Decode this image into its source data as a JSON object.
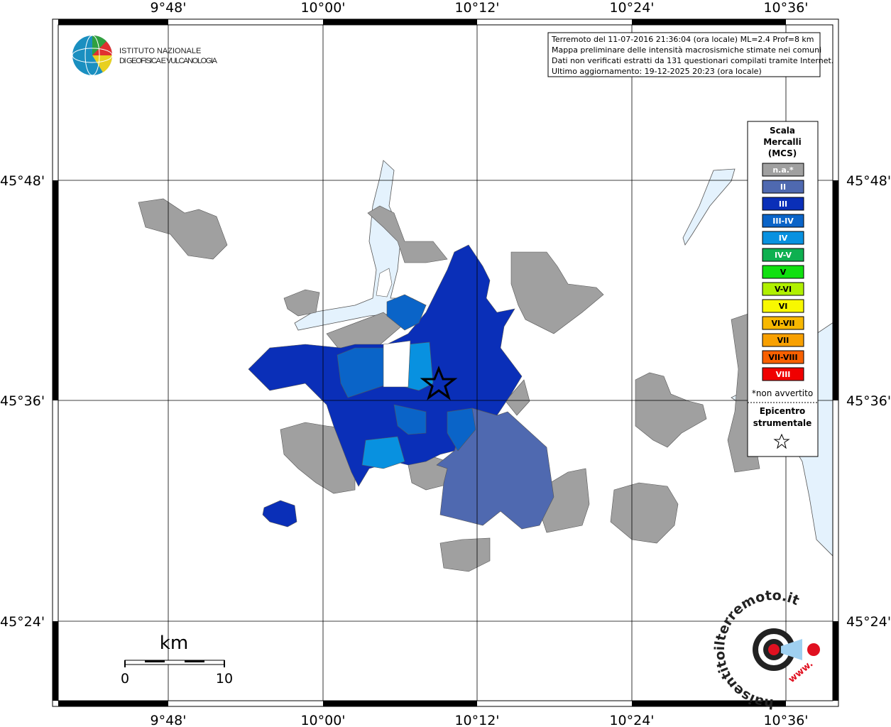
{
  "header": {
    "logo_line1": "ISTITUTO NAZIONALE",
    "logo_line2": "DI GEOFISICA E VULCANOLOGIA"
  },
  "info": [
    "Terremoto del 11-07-2016 21:36:04 (ora locale) ML=2.4 Prof=8 km",
    "Mappa preliminare delle intensità macrosismiche stimate nei comuni",
    "Dati non verificati estratti da 131 questionari compilati tramite Internet.",
    "Ultimo aggiornamento: 19-12-2025 20:23 (ora locale)"
  ],
  "lon_labels": [
    "9°48'",
    "10°00'",
    "10°12'",
    "10°24'",
    "10°36'"
  ],
  "lat_labels": [
    "45°48'",
    "45°36'",
    "45°24'"
  ],
  "legend": {
    "title": [
      "Scala",
      "Mercalli",
      "(MCS)"
    ],
    "items": [
      {
        "label": "n.a.*",
        "color": "#a0a0a0"
      },
      {
        "label": "II",
        "color": "#4f69b0"
      },
      {
        "label": "III",
        "color": "#0a2fb8"
      },
      {
        "label": "III-IV",
        "color": "#0a64c8"
      },
      {
        "label": "IV",
        "color": "#0891e0"
      },
      {
        "label": "IV-V",
        "color": "#0eb050"
      },
      {
        "label": "V",
        "color": "#10e010"
      },
      {
        "label": "V-VI",
        "color": "#b0f000"
      },
      {
        "label": "VI",
        "color": "#f8f800"
      },
      {
        "label": "VI-VII",
        "color": "#f8b800"
      },
      {
        "label": "VII",
        "color": "#f8a000"
      },
      {
        "label": "VII-VIII",
        "color": "#f86000"
      },
      {
        "label": "VIII",
        "color": "#f00000"
      }
    ],
    "note": "*non avvertito",
    "epicenter": [
      "Epicentro",
      "strumentale"
    ]
  },
  "scale_bar": {
    "unit": "km",
    "start": "0",
    "end": "10"
  },
  "site_logo": {
    "text": "haisentitoilterremoto.it",
    "prefix": "www."
  }
}
